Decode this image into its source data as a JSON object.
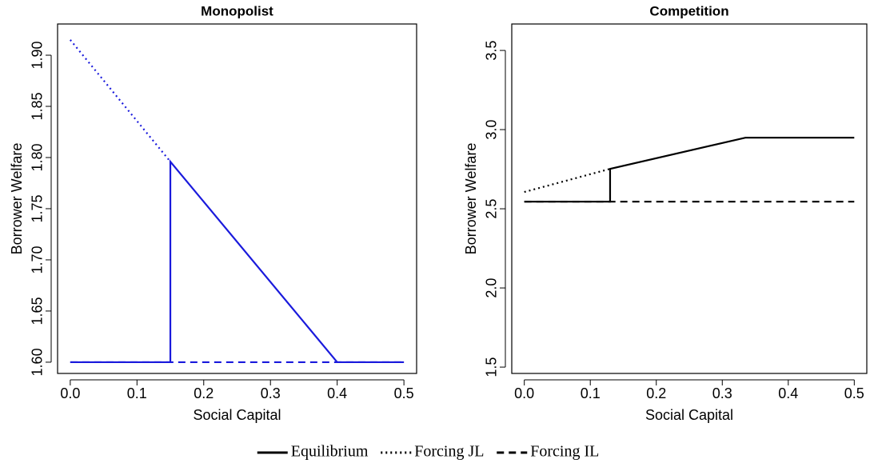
{
  "chart_data": [
    {
      "type": "line",
      "title": "Monopolist",
      "x_label": "Social Capital",
      "y_label": "Borrower Welfare",
      "xlim": [
        -0.019,
        0.519
      ],
      "ylim": [
        1.589,
        1.9305
      ],
      "xticks": [
        {
          "value": 0,
          "label": "0.0"
        },
        0.1,
        0.2,
        0.3,
        0.4,
        0.5
      ],
      "yticks": [
        {
          "value": 1.6,
          "label": "1.60"
        },
        1.65,
        {
          "value": 1.7,
          "label": "1.70"
        },
        1.75,
        {
          "value": 1.8,
          "label": "1.80"
        },
        1.85,
        {
          "value": 1.9,
          "label": "1.90"
        }
      ],
      "series": [
        {
          "color": "#1a1adc",
          "linestyle": "solid",
          "x": [
            0,
            0.15,
            0.15,
            0.4,
            0.5
          ],
          "values": [
            1.6,
            1.6,
            1.796,
            1.6,
            1.6
          ]
        },
        {
          "color": "#1a1adc",
          "linestyle": "dotted",
          "x": [
            0,
            0.15
          ],
          "values": [
            1.915,
            1.796
          ]
        },
        {
          "color": "#1a1adc",
          "linestyle": "dashed",
          "x": [
            0,
            0.5
          ],
          "values": [
            1.6,
            1.6
          ]
        }
      ]
    },
    {
      "type": "line",
      "title": "Competition",
      "x_label": "Social Capital",
      "y_label": "Borrower Welfare",
      "xlim": [
        -0.019,
        0.519
      ],
      "ylim": [
        1.46,
        3.667
      ],
      "xticks": [
        {
          "value": 0,
          "label": "0.0"
        },
        0.1,
        0.2,
        0.3,
        0.4,
        0.5
      ],
      "yticks": [
        1.5,
        {
          "value": 2,
          "label": "2.0"
        },
        2.5,
        {
          "value": 3,
          "label": "3.0"
        },
        3.5
      ],
      "series": [
        {
          "name": "Equilibrium",
          "color": "#000000",
          "linestyle": "solid",
          "x": [
            0,
            0.13,
            0.13,
            0.335,
            0.5
          ],
          "values": [
            2.545,
            2.545,
            2.752,
            2.949,
            2.949
          ]
        },
        {
          "name": "Forcing JL",
          "color": "#000000",
          "linestyle": "dotted",
          "x": [
            0,
            0.13
          ],
          "values": [
            2.606,
            2.752
          ]
        },
        {
          "name": "Forcing IL",
          "color": "#000000",
          "linestyle": "dashed",
          "x": [
            0,
            0.5
          ],
          "values": [
            2.545,
            2.545
          ]
        }
      ]
    }
  ]
}
